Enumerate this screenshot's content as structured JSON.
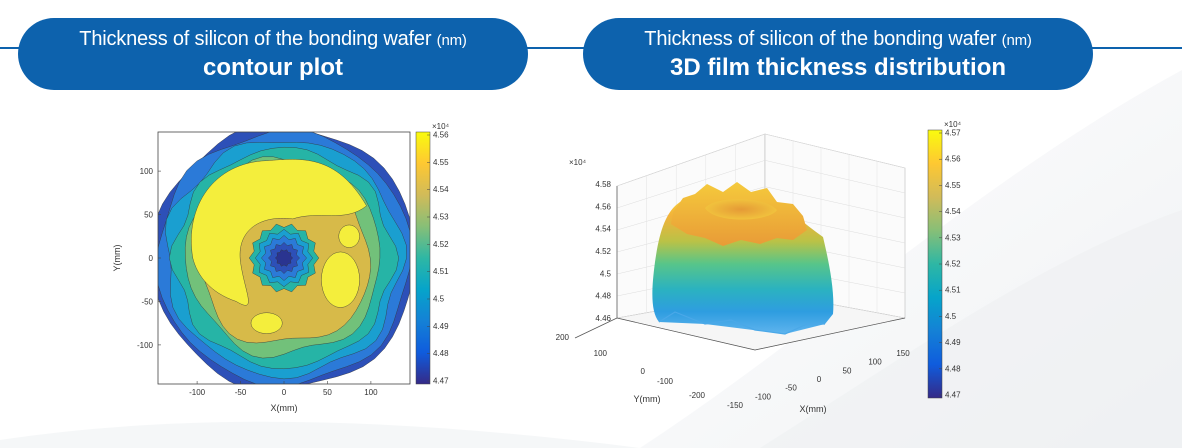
{
  "panels": [
    {
      "title_main": "Thickness of silicon of the bonding wafer",
      "title_unit": "(nm)",
      "subtitle": "contour plot"
    },
    {
      "title_main": "Thickness of silicon of the bonding wafer",
      "title_unit": "(nm)",
      "subtitle": "3D film thickness distribution"
    }
  ],
  "chart_data": [
    {
      "type": "heatmap",
      "subtype": "contour",
      "xlabel": "X(mm)",
      "ylabel": "Y(mm)",
      "xticks": [
        "-100",
        "-50",
        "0",
        "50",
        "100"
      ],
      "yticks": [
        "100",
        "50",
        "0",
        "-50",
        "-100"
      ],
      "xlim": [
        -145,
        145
      ],
      "ylim": [
        -145,
        145
      ],
      "colorbar": {
        "exponent": "×10⁴",
        "ticks": [
          "4.56",
          "4.55",
          "4.54",
          "4.53",
          "4.52",
          "4.51",
          "4.5",
          "4.49",
          "4.48",
          "4.47"
        ],
        "range": [
          4.47,
          4.56
        ],
        "colormap": "parula"
      },
      "levels": [
        {
          "value": 4.485,
          "color": "#2d50b8"
        },
        {
          "value": 4.495,
          "color": "#2b7ad8"
        },
        {
          "value": 4.505,
          "color": "#1a9fd0"
        },
        {
          "value": 4.515,
          "color": "#26b4a6"
        },
        {
          "value": 4.525,
          "color": "#72c17a"
        },
        {
          "value": 4.535,
          "color": "#d7ba49"
        },
        {
          "value": 4.55,
          "color": "#f4ee3c"
        }
      ]
    },
    {
      "type": "heatmap",
      "subtype": "surface-3d",
      "zlabel_exponent": "×10⁴",
      "zticks": [
        "4.58",
        "4.56",
        "4.54",
        "4.52",
        "4.5",
        "4.48",
        "4.46"
      ],
      "xlabel": "X(mm)",
      "ylabel": "Y(mm)",
      "xticks": [
        "-150",
        "-100",
        "-50",
        "0",
        "50",
        "100",
        "150"
      ],
      "yticks": [
        "200",
        "100",
        "0",
        "-100",
        "-200"
      ],
      "colorbar": {
        "exponent": "×10⁴",
        "ticks": [
          "4.57",
          "4.56",
          "4.55",
          "4.54",
          "4.53",
          "4.52",
          "4.51",
          "4.5",
          "4.49",
          "4.48",
          "4.47"
        ],
        "range": [
          4.47,
          4.57
        ],
        "colormap": "parula"
      }
    }
  ]
}
